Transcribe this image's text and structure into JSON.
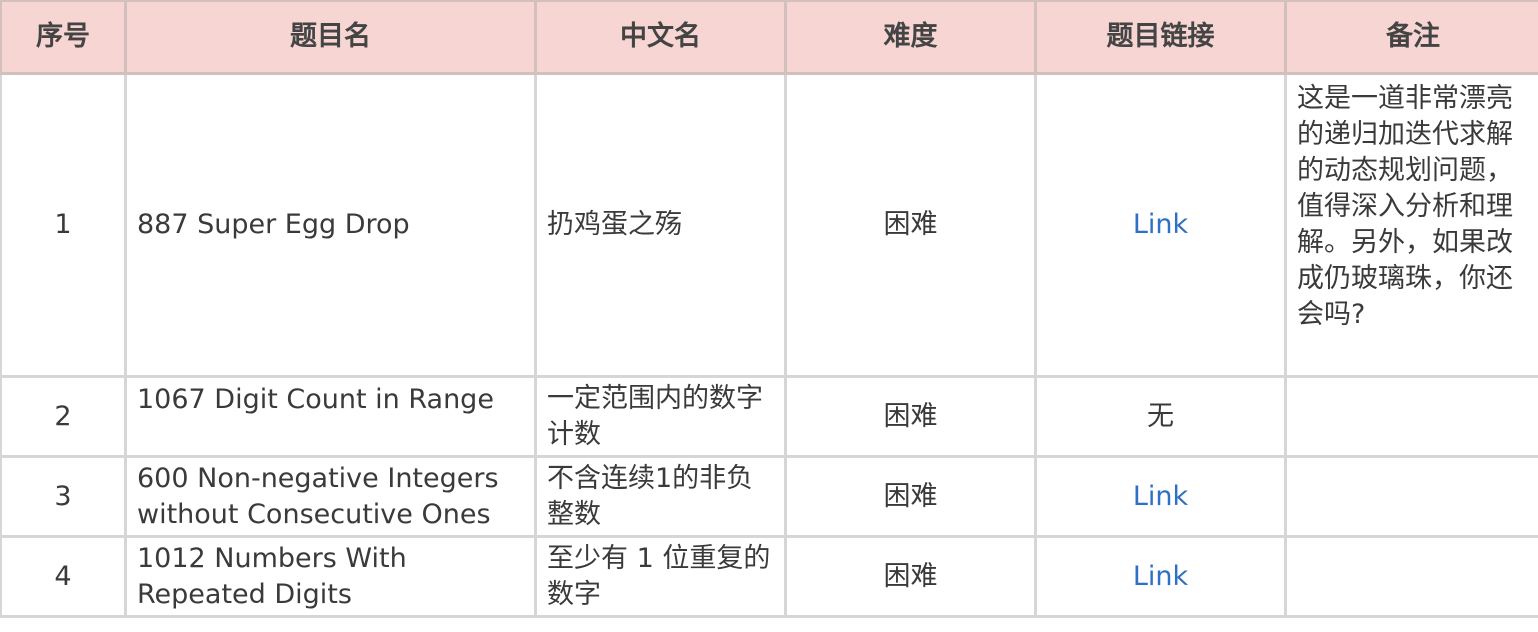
{
  "headers": [
    "序号",
    "题目名",
    "中文名",
    "难度",
    "题目链接",
    "备注"
  ],
  "rows": [
    {
      "no": "1",
      "title": "887 Super Egg Drop",
      "cn": "扔鸡蛋之殇",
      "difficulty": "困难",
      "link": "Link",
      "link_is_link": true,
      "note": "这是一道非常漂亮的递归加迭代求解的动态规划问题，值得深入分析和理解。另外，如果改成仍玻璃珠，你还会吗?"
    },
    {
      "no": "2",
      "title": "1067  Digit Count in Range",
      "cn": "一定范围内的数字计数",
      "difficulty": "困难",
      "link": "无",
      "link_is_link": false,
      "note": ""
    },
    {
      "no": "3",
      "title": "600  Non-negative Integers without Consecutive Ones",
      "cn": "不含连续1的非负整数",
      "difficulty": "困难",
      "link": "Link",
      "link_is_link": true,
      "note": ""
    },
    {
      "no": "4",
      "title": "1012  Numbers With Repeated Digits",
      "cn": "至少有 1 位重复的数字",
      "difficulty": "困难",
      "link": "Link",
      "link_is_link": true,
      "note": ""
    }
  ],
  "colors": {
    "header_bg": "#f6d5d3",
    "link": "#2f6fc4",
    "border": "#d6d6d6"
  }
}
